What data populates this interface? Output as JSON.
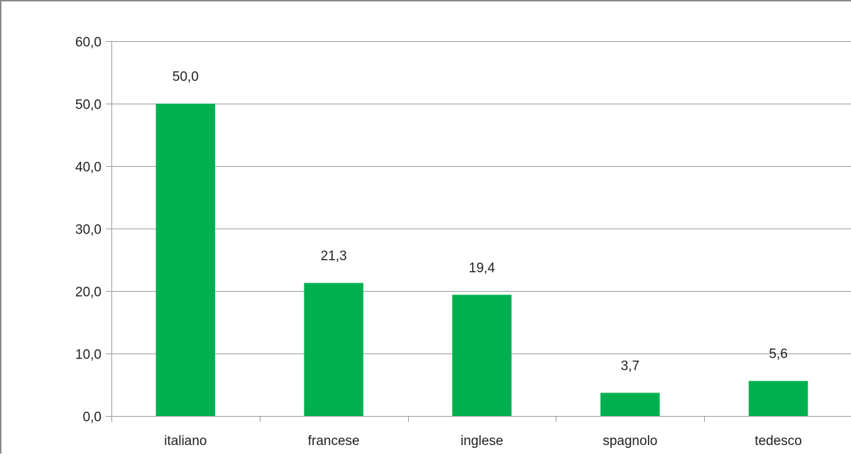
{
  "colors": {
    "bar": "#00b050",
    "grid": "#9a9a9a",
    "axis": "#9a9a9a",
    "text": "#222222"
  },
  "chart_data": {
    "type": "bar",
    "categories": [
      "italiano",
      "francese",
      "inglese",
      "spagnolo",
      "tedesco"
    ],
    "values": [
      50.0,
      21.3,
      19.4,
      3.7,
      5.6
    ],
    "data_labels": [
      "50,0",
      "21,3",
      "19,4",
      "3,7",
      "5,6"
    ],
    "y_ticks": [
      0,
      10,
      20,
      30,
      40,
      50,
      60
    ],
    "y_tick_labels": [
      "0,0",
      "10,0",
      "20,0",
      "30,0",
      "40,0",
      "50,0",
      "60,0"
    ],
    "ylim": [
      0,
      60
    ],
    "grid": true,
    "legend": "none",
    "title": "",
    "xlabel": "",
    "ylabel": ""
  }
}
